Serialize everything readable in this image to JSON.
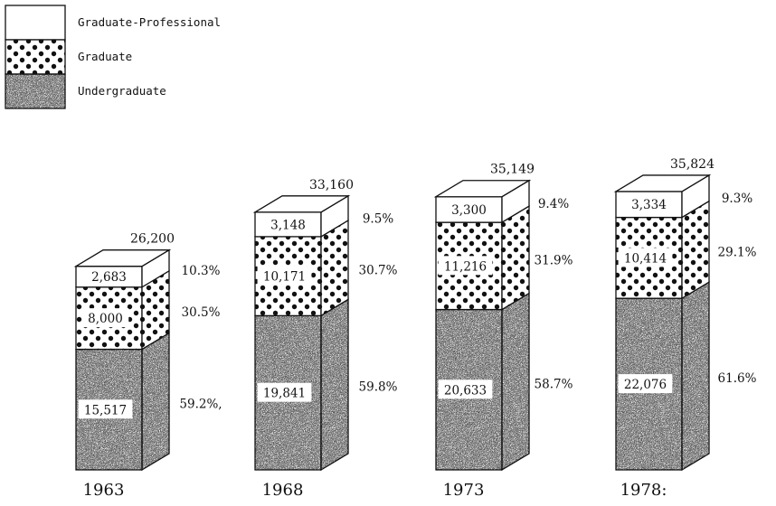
{
  "chart_data": {
    "type": "bar",
    "stacked": true,
    "style": "3d-column",
    "categories": [
      "1963",
      "1968",
      "1973",
      "1978"
    ],
    "category_labels": [
      "1963",
      "1968",
      "1973",
      "1978:"
    ],
    "totals": [
      26200,
      33160,
      35149,
      35824
    ],
    "total_labels": [
      "26,200",
      "33,160",
      "35,149",
      "35,824"
    ],
    "series": [
      {
        "name": "Undergraduate",
        "pattern": "speckle",
        "values": [
          15517,
          19841,
          20633,
          22076
        ],
        "value_labels": [
          "15,517",
          "19,841",
          "20,633",
          "22,076"
        ],
        "percent_labels": [
          "59.2%,",
          "59.8%",
          "58.7%",
          "61.6%"
        ]
      },
      {
        "name": "Graduate",
        "pattern": "dots",
        "values": [
          8000,
          10171,
          11216,
          10414
        ],
        "value_labels": [
          "8,000",
          "10,171",
          "11,216",
          "10,414"
        ],
        "percent_labels": [
          "30.5%",
          "30.7%",
          "31.9%",
          "29.1%"
        ]
      },
      {
        "name": "Graduate-Professional",
        "pattern": "plain",
        "values": [
          2683,
          3148,
          3300,
          3334
        ],
        "value_labels": [
          "2,683",
          "3,148",
          "3,300",
          "3,334"
        ],
        "percent_labels": [
          "10.3%",
          "9.5%",
          "9.4%",
          "9.3%"
        ]
      }
    ],
    "legend": {
      "placement": "top-left",
      "entries": [
        "Graduate-Professional",
        "Graduate",
        "Undergraduate"
      ]
    },
    "grid": false,
    "colors": {
      "ink": "#111111",
      "paper": "#ffffff"
    }
  }
}
